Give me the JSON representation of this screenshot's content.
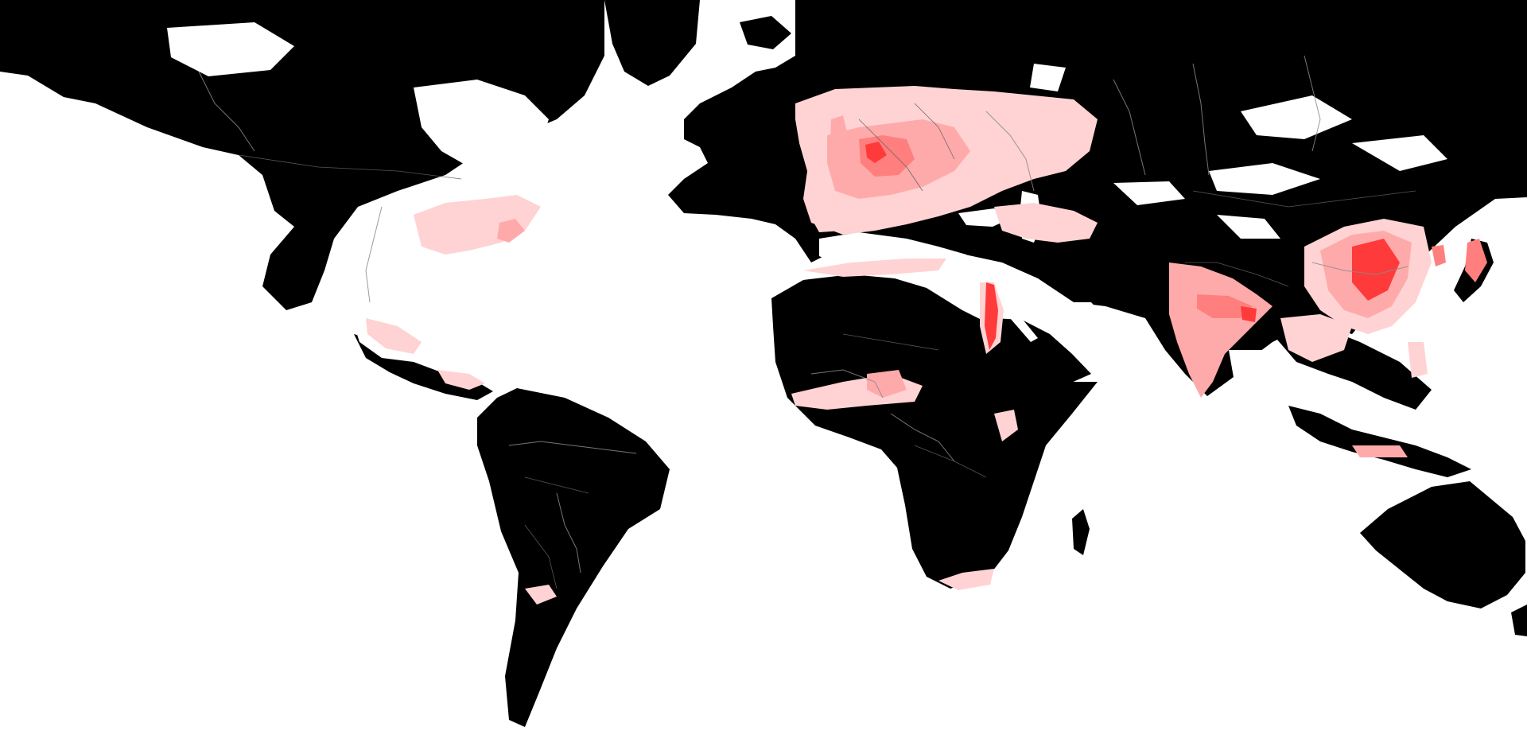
{
  "map": {
    "style": "black-white world map (Mercator-like) with red population-density overlay",
    "colors": {
      "ocean": "#ffffff",
      "land": "#000000",
      "density_levels": [
        "#ffd3d3",
        "#ffaaaa",
        "#ff7f7f",
        "#ff3a3a",
        "#ff1414"
      ]
    }
  }
}
